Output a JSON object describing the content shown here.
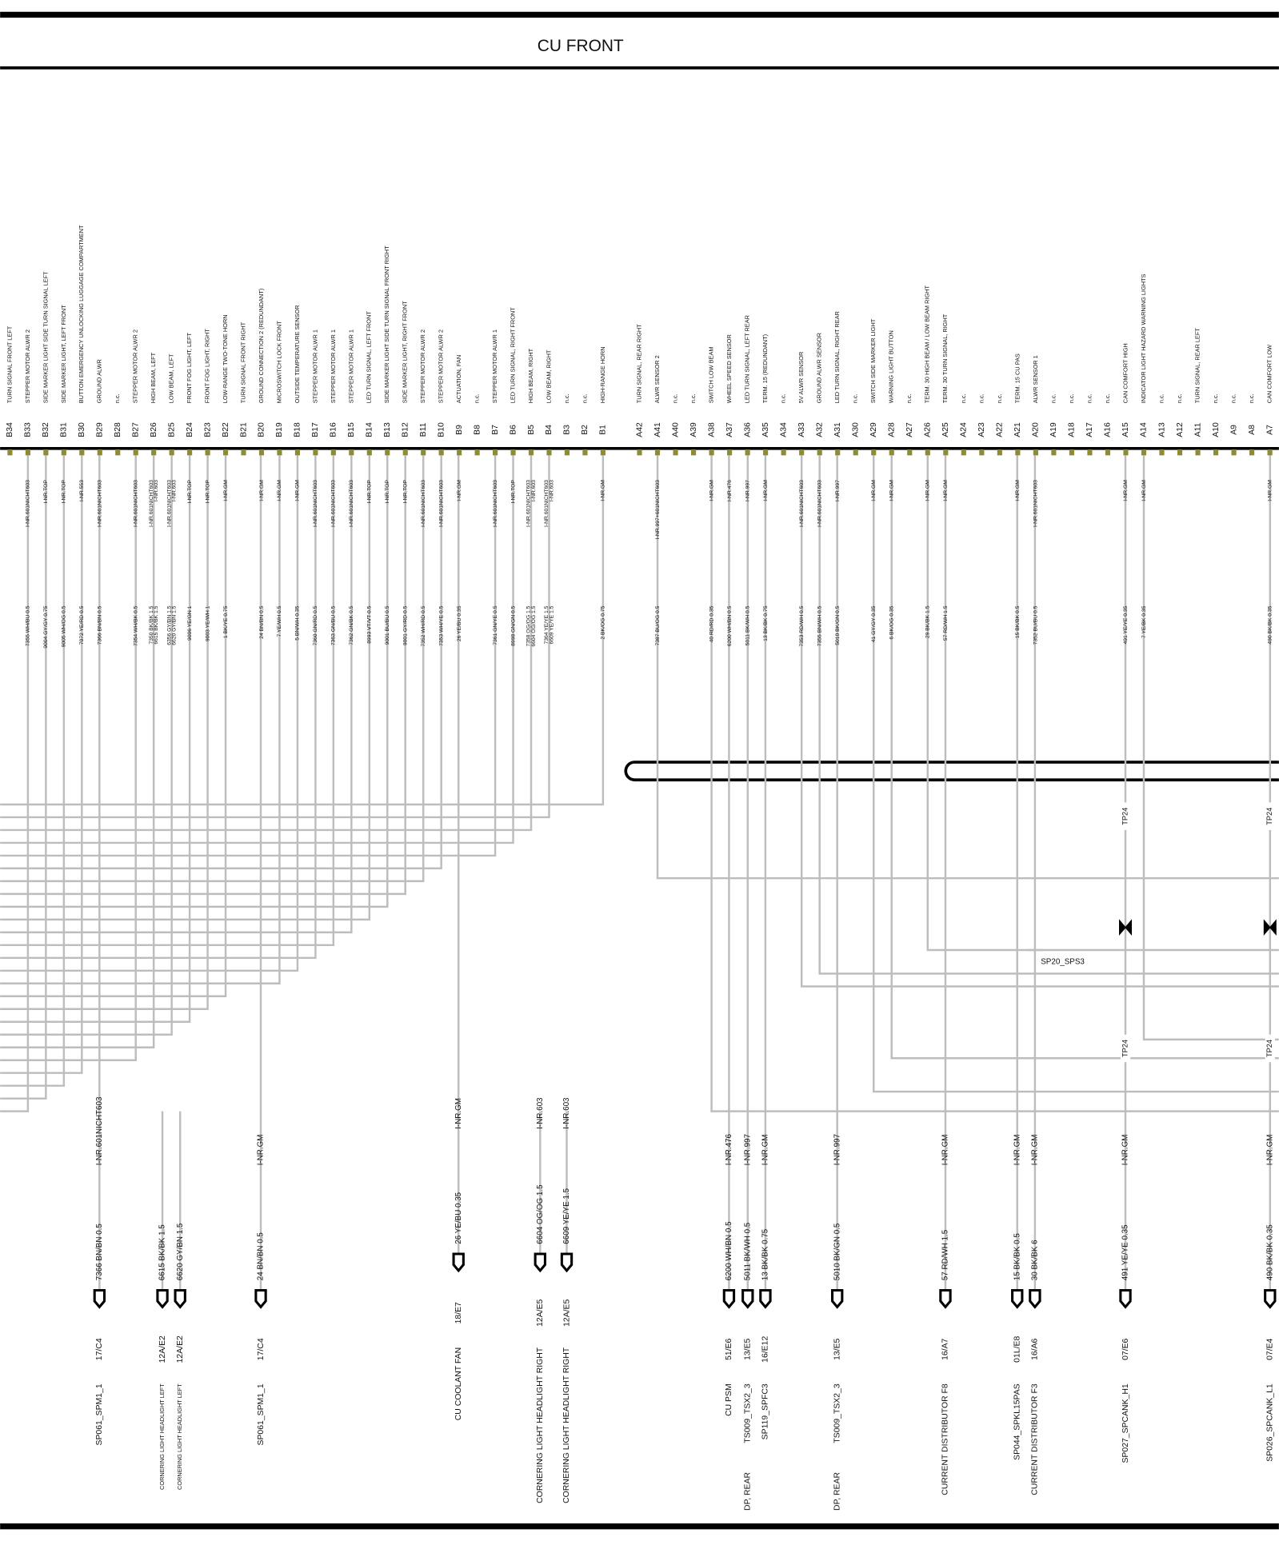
{
  "header": {
    "title": "CU FRONT"
  },
  "pins": [
    {
      "id": "B34",
      "desc": "TURN SIGNAL FRONT LEFT"
    },
    {
      "id": "B33",
      "desc": "STEPPER MOTOR ALWR 2",
      "wires": [
        {
          "net": "I-NR.601NICHT603",
          "spec": "7355 WH/BU 0.5"
        }
      ]
    },
    {
      "id": "B32",
      "desc": "SIDE MARKER LIGHT SIDE TURN SIGNAL LEFT",
      "wires": [
        {
          "net": "I-NR.TOP",
          "spec": "9004 GY/GY 0.75"
        }
      ]
    },
    {
      "id": "B31",
      "desc": "SIDE MARKER LIGHT, LEFT FRONT",
      "wires": [
        {
          "net": "I-NR.TOP",
          "spec": "9005 WH/OG 0.5"
        }
      ]
    },
    {
      "id": "B30",
      "desc": "BUTTON EMERGENCY UNLOCKING LUGGAGE COMPARTMENT",
      "wires": [
        {
          "net": "I-NR.553",
          "spec": "7072 YE/RD 0.5"
        }
      ]
    },
    {
      "id": "B29",
      "desc": "GROUND ALWR",
      "wires": [
        {
          "net": "I-NR.601NICHT603",
          "spec": "7366 BN/BN 0.5"
        }
      ]
    },
    {
      "id": "B28",
      "desc": "n.c."
    },
    {
      "id": "B27",
      "desc": "STEPPER MOTOR ALWR 2",
      "wires": [
        {
          "net": "I-NR.601NICHT603",
          "spec": "7354 WH/BK 0.5"
        }
      ]
    },
    {
      "id": "B26",
      "desc": "HIGH BEAM, LEFT",
      "wires": [
        {
          "net": "I-NR.601NICHT603",
          "spec": "7350 BK/BK 1.5"
        },
        {
          "net": "I-NR.603",
          "spec": "6615 BK/BK 1.5"
        }
      ]
    },
    {
      "id": "B25",
      "desc": "LOW BEAM, LEFT",
      "wires": [
        {
          "net": "I-NR.601NICHT603",
          "spec": "6356 GY/BN 1.5"
        },
        {
          "net": "I-NR.603",
          "spec": "6620 GY/BN 1.5"
        }
      ]
    },
    {
      "id": "B24",
      "desc": "FRONT FOG LIGHT, LEFT",
      "wires": [
        {
          "net": "I-NR.TOP",
          "spec": "9006 YE/GN 1"
        }
      ]
    },
    {
      "id": "B23",
      "desc": "FRONT FOG LIGHT, RIGHT",
      "wires": [
        {
          "net": "I-NR.TOP",
          "spec": "9003 YE/WH 1"
        }
      ]
    },
    {
      "id": "B22",
      "desc": "LOW-RANGE TWO-TONE HORN",
      "wires": [
        {
          "net": "I-NR.GM",
          "spec": "1 BK/YE 0.75"
        }
      ]
    },
    {
      "id": "B21",
      "desc": "TURN SIGNAL FRONT RIGHT"
    },
    {
      "id": "B20",
      "desc": "GROUND CONNECTION 2 (REDUNDANT)",
      "wires": [
        {
          "net": "I-NR.GM",
          "spec": "24 BN/BN 0.5"
        }
      ]
    },
    {
      "id": "B19",
      "desc": "MICROSWITCH LOCK FRONT",
      "wires": [
        {
          "net": "I-NR.GM",
          "spec": "7 YE/WH 0.5"
        }
      ]
    },
    {
      "id": "B18",
      "desc": "OUTSIDE TEMPERATURE SENSOR",
      "wires": [
        {
          "net": "I-NR.GM",
          "spec": "5 BN/WH 0.35"
        }
      ]
    },
    {
      "id": "B17",
      "desc": "STEPPER MOTOR ALWR 1",
      "wires": [
        {
          "net": "I-NR.601NICHT603",
          "spec": "7360 GN/RD 0.5"
        }
      ]
    },
    {
      "id": "B16",
      "desc": "STEPPER MOTOR ALWR 1",
      "wires": [
        {
          "net": "I-NR.601NICHT603",
          "spec": "7363 GN/BU 0.5"
        }
      ]
    },
    {
      "id": "B15",
      "desc": "STEPPER MOTOR ALWR 1",
      "wires": [
        {
          "net": "I-NR.601NICHT603",
          "spec": "7362 GN/BK 0.5"
        }
      ]
    },
    {
      "id": "B14",
      "desc": "LED TURN SIGNAL, LEFT FRONT",
      "wires": [
        {
          "net": "I-NR.TOP",
          "spec": "8993 VT/VT 0.5"
        }
      ]
    },
    {
      "id": "B13",
      "desc": "SIDE MARKER LIGHT SIDE TURN SIGNAL FRONT RIGHT",
      "wires": [
        {
          "net": "I-NR.TOP",
          "spec": "9001 BU/BU 0.5"
        }
      ]
    },
    {
      "id": "B12",
      "desc": "SIDE MARKER LIGHT, RIGHT FRONT",
      "wires": [
        {
          "net": "I-NR.TOP",
          "spec": "9001 GY/RD 0.5"
        }
      ]
    },
    {
      "id": "B11",
      "desc": "STEPPER MOTOR ALWR 2",
      "wires": [
        {
          "net": "I-NR.601NICHT603",
          "spec": "7352 WH/RD 0.5"
        }
      ]
    },
    {
      "id": "B10",
      "desc": "STEPPER MOTOR ALWR 2",
      "wires": [
        {
          "net": "I-NR.601NICHT603",
          "spec": "7353 WH/YE 0.5"
        }
      ]
    },
    {
      "id": "B9",
      "desc": "ACTUATION, FAN",
      "wires": [
        {
          "net": "I-NR.GM",
          "spec": "26 YE/BU 0.35"
        }
      ]
    },
    {
      "id": "B8",
      "desc": "n.c."
    },
    {
      "id": "B7",
      "desc": "STEPPER MOTOR ALWR 1",
      "wires": [
        {
          "net": "I-NR.601NICHT603",
          "spec": "7361 GN/YE 0.5"
        }
      ]
    },
    {
      "id": "B6",
      "desc": "LED TURN SIGNAL, RIGHT FRONT",
      "wires": [
        {
          "net": "I-NR.TOP",
          "spec": "8998 GN/GN 0.5"
        }
      ]
    },
    {
      "id": "B5",
      "desc": "HIGH BEAM, RIGHT",
      "wires": [
        {
          "net": "I-NR.601NICHT603",
          "spec": "7358 OG/OG 1.5"
        },
        {
          "net": "I-NR.603",
          "spec": "6604 OG/OG 1.5"
        }
      ]
    },
    {
      "id": "B4",
      "desc": "LOW BEAM, RIGHT",
      "wires": [
        {
          "net": "I-NR.601NICHT603",
          "spec": "7364 YE/YE 1.5"
        },
        {
          "net": "I-NR.603",
          "spec": "6609 YE/YE 1.5"
        }
      ]
    },
    {
      "id": "B3",
      "desc": "n.c."
    },
    {
      "id": "B2",
      "desc": "n.c."
    },
    {
      "id": "B1",
      "desc": "HIGH-RANGE HORN",
      "wires": [
        {
          "net": "I-NR.GM",
          "spec": "2 BK/OG 0.75"
        }
      ]
    },
    {
      "id": "A42",
      "desc": "TURN SIGNAL, REAR RIGHT"
    },
    {
      "id": "A41",
      "desc": "ALWR SENSOR 2",
      "wires": [
        {
          "net": "I-NR.997+601NICHT603",
          "spec": "7387 BU/OG 0.5"
        }
      ]
    },
    {
      "id": "A40",
      "desc": "n.c."
    },
    {
      "id": "A39",
      "desc": "n.c."
    },
    {
      "id": "A38",
      "desc": "SWITCH LOW BEAM",
      "wires": [
        {
          "net": "I-NR.GM",
          "spec": "40 RD/RD 0.35"
        }
      ]
    },
    {
      "id": "A37",
      "desc": "WHEEL SPEED SENSOR",
      "wires": [
        {
          "net": "I-NR.476",
          "spec": "6200 WH/BN 0.5"
        }
      ]
    },
    {
      "id": "A36",
      "desc": "LED TURN SIGNAL, LEFT REAR",
      "wires": [
        {
          "net": "I-NR.997",
          "spec": "5011 BK/WH 0.5"
        }
      ]
    },
    {
      "id": "A35",
      "desc": "TERM. 15 (REDUNDANT)",
      "wires": [
        {
          "net": "I-NR.GM",
          "spec": "13 BK/BK 0.75"
        }
      ]
    },
    {
      "id": "A34",
      "desc": "n.c."
    },
    {
      "id": "A33",
      "desc": "5V ALWR SENSOR",
      "wires": [
        {
          "net": "I-NR.601NICHT603",
          "spec": "7353 RD/WH 0.5"
        }
      ]
    },
    {
      "id": "A32",
      "desc": "GROUND ALWR SENSOR",
      "wires": [
        {
          "net": "I-NR.601NICHT603",
          "spec": "7355 BN/WH 0.5"
        }
      ]
    },
    {
      "id": "A31",
      "desc": "LED TURN SIGNAL, RIGHT REAR",
      "wires": [
        {
          "net": "I-NR.997",
          "spec": "5010 BK/GN 0.5"
        }
      ]
    },
    {
      "id": "A30",
      "desc": "n.c."
    },
    {
      "id": "A29",
      "desc": "SWITCH SIDE MARKER LIGHT",
      "wires": [
        {
          "net": "I-NR.GM",
          "spec": "41 GY/GY 0.35"
        }
      ]
    },
    {
      "id": "A28",
      "desc": "WARNING LIGHT BUTTON",
      "wires": [
        {
          "net": "I-NR.GM",
          "spec": "6 BK/OG 0.35"
        }
      ]
    },
    {
      "id": "A27",
      "desc": "n.c."
    },
    {
      "id": "A26",
      "desc": "TERM. 30 HIGH BEAM / LOW BEAM RIGHT",
      "wires": [
        {
          "net": "I-NR.GM",
          "spec": "29 BK/BK 1.5"
        }
      ]
    },
    {
      "id": "A25",
      "desc": "TERM. 30 TURN SIGNAL, RIGHT",
      "wires": [
        {
          "net": "I-NR.GM",
          "spec": "57 RD/WH 1.5"
        }
      ]
    },
    {
      "id": "A24",
      "desc": "n.c."
    },
    {
      "id": "A23",
      "desc": "n.c."
    },
    {
      "id": "A22",
      "desc": "n.c."
    },
    {
      "id": "A21",
      "desc": "TERM. 15 CU PAS",
      "wires": [
        {
          "net": "I-NR.GM",
          "spec": "15 BK/BK 0.5"
        }
      ]
    },
    {
      "id": "A20",
      "desc": "ALWR SENSOR 1",
      "wires": [
        {
          "net": "I-NR.601NICHT603",
          "spec": "7352 BU/BU 0.5"
        }
      ]
    },
    {
      "id": "A19",
      "desc": "n.c."
    },
    {
      "id": "A18",
      "desc": "n.c."
    },
    {
      "id": "A17",
      "desc": "n.c."
    },
    {
      "id": "A16",
      "desc": "n.c."
    },
    {
      "id": "A15",
      "desc": "CAN COMFORT HIGH",
      "wires": [
        {
          "net": "I-NR.GM",
          "spec": "491 YE/YE 0.35"
        }
      ]
    },
    {
      "id": "A14",
      "desc": "INDICATOR LIGHT HAZARD WARNING LIGHTS",
      "wires": [
        {
          "net": "I-NR.GM",
          "spec": "7 YE/BK 0.35"
        }
      ]
    },
    {
      "id": "A13",
      "desc": "n.c."
    },
    {
      "id": "A12",
      "desc": "n.c."
    },
    {
      "id": "A11",
      "desc": "TURN SIGNAL, REAR LEFT"
    },
    {
      "id": "A10",
      "desc": "n.c."
    },
    {
      "id": "A9",
      "desc": "n.c."
    },
    {
      "id": "A8",
      "desc": "n.c."
    },
    {
      "id": "A7",
      "desc": "CAN COMFORT LOW",
      "wires": [
        {
          "net": "I-NR.GM",
          "spec": "490 BK/BK 0.35"
        }
      ]
    }
  ],
  "connectors": [
    {
      "spec": "7366 BN/BN 0.5",
      "net": "I-NR.601NICHT603",
      "code": "17/C4",
      "name": "SP061_SPM1_1"
    },
    {
      "spec": "6615 BK/BK 1.5",
      "code": "12A/E2",
      "name": "CORNERING LIGHT HEADLIGHT LEFT"
    },
    {
      "spec": "6620 GY/BN 1.5",
      "code": "12A/E2",
      "name": "CORNERING LIGHT HEADLIGHT LEFT"
    },
    {
      "spec": "24 BN/BN 0.5",
      "net": "I-NR.GM",
      "code": "17/C4",
      "name": "SP061_SPM1_1"
    },
    {
      "spec": "26 YE/BU 0.35",
      "net": "I-NR.GM",
      "code": "18/E7",
      "name": "CU COOLANT FAN"
    },
    {
      "spec": "6604 OG/OG 1.5",
      "net": "I-NR.603",
      "code": "12A/E5",
      "name": "CORNERING LIGHT HEADLIGHT RIGHT"
    },
    {
      "spec": "6609 YE/YE 1.5",
      "net": "I-NR.603",
      "code": "12A/E5",
      "name": "CORNERING LIGHT HEADLIGHT RIGHT"
    },
    {
      "spec": "6200 WH/BN 0.5",
      "net": "I-NR.476",
      "code": "51/E6",
      "name": "CU PSM"
    },
    {
      "spec": "5011 BK/WH 0.5",
      "net": "I-NR.997",
      "code": "13/E5",
      "name": "TS009_TSX2_3",
      "name2": "DP, REAR"
    },
    {
      "spec": "13 BK/BK 0.75",
      "net": "I-NR.GM",
      "code": "16/E12",
      "name": "SP119_SPFC3"
    },
    {
      "spec": "5010 BK/GN 0.5",
      "net": "I-NR.997",
      "code": "13/E5",
      "name": "TS009_TSX2_3",
      "name2": "DP, REAR"
    },
    {
      "spec": "57 RD/WH 1.5",
      "net": "I-NR.GM",
      "code": "16/A7",
      "name": "CURRENT DISTRIBUTOR F8"
    },
    {
      "spec": "15 BK/BK 0.5",
      "net": "I-NR.GM",
      "code": "01L/E8",
      "name": "SP044_SPKL15PAS"
    },
    {
      "spec": "30 BK/BK 6",
      "net": "I-NR.GM",
      "code": "16/A6",
      "name": "CURRENT DISTRIBUTOR F3"
    },
    {
      "spec": "491 YE/YE 0.35",
      "net": "I-NR.GM",
      "code": "07/E6",
      "name": "SP027_SPCANK_H1"
    },
    {
      "spec": "490 BK/BK 0.35",
      "net": "I-NR.GM",
      "code": "07/E4",
      "name": "SP026_SPCANK_L1"
    }
  ],
  "test_points": [
    "TP24",
    "TP24",
    "TP24",
    "TP24"
  ],
  "splice": "SP20_SPS3"
}
